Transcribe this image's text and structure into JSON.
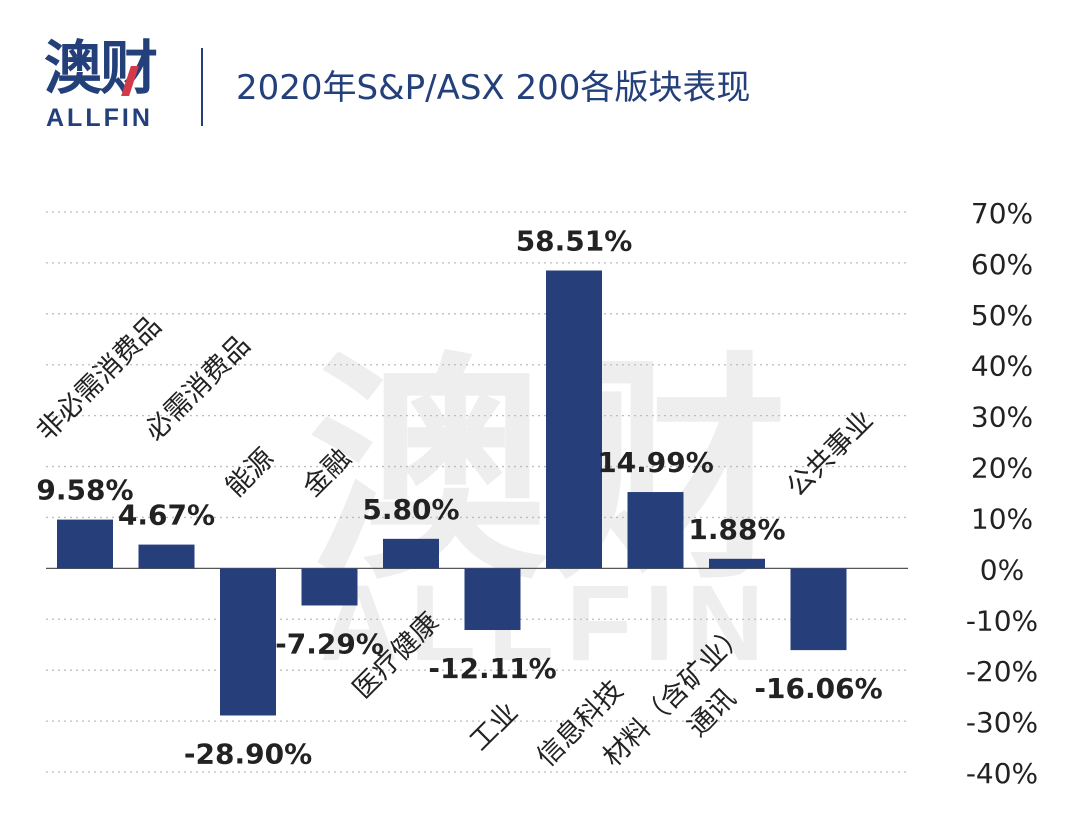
{
  "logo": {
    "cn": "澳财",
    "en": "ALLFIN"
  },
  "watermark": {
    "cn": "澳财",
    "en": "ALLFIN"
  },
  "colors": {
    "bar": "#263f7a",
    "title": "#24407a",
    "grid": "#bdbdbd",
    "text": "#222222",
    "watermark": "#eeeeee"
  },
  "chart_data": {
    "type": "bar",
    "title": "2020年S&P/ASX 200各版块表现",
    "categories": [
      "非必需消费品",
      "必需消费品",
      "能源",
      "金融",
      "医疗健康",
      "工业",
      "信息科技",
      "材料（含矿业）",
      "通讯",
      "公共事业"
    ],
    "values": [
      9.58,
      4.67,
      -28.9,
      -7.29,
      5.8,
      -12.11,
      58.51,
      14.99,
      1.88,
      -16.06
    ],
    "value_labels": [
      "9.58%",
      "4.67%",
      "-28.90%",
      "-7.29%",
      "5.80%",
      "-12.11%",
      "58.51%",
      "14.99%",
      "1.88%",
      "-16.06%"
    ],
    "ylim": [
      -40,
      70
    ],
    "yticks": [
      70,
      60,
      50,
      40,
      30,
      20,
      10,
      0,
      -10,
      -20,
      -30,
      -40
    ],
    "ytick_labels": [
      "70%",
      "60%",
      "50%",
      "40%",
      "30%",
      "20%",
      "10%",
      "0%",
      "-10%",
      "-20%",
      "-30%",
      "-40%"
    ],
    "y_axis_side": "right",
    "grid": true,
    "legend": false
  }
}
